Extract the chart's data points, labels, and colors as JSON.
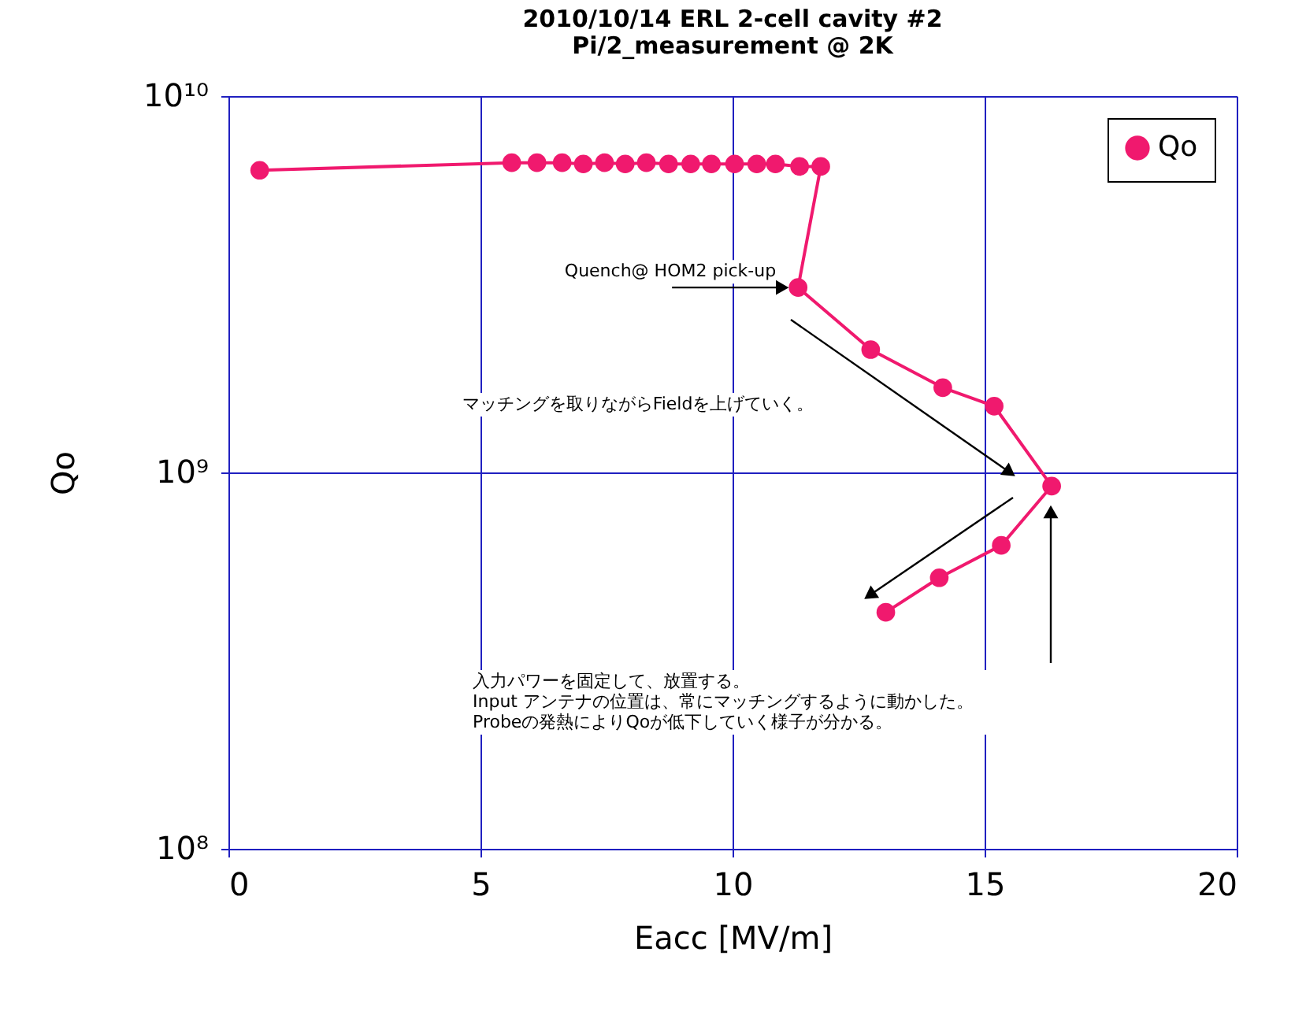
{
  "chart_data": {
    "type": "line",
    "title": "2010/10/14 ERL 2-cell cavity #2\nPi/2_measurement @ 2K",
    "xlabel": "Eacc [MV/m]",
    "ylabel": "Qo",
    "x": [
      0.62,
      5.62,
      6.12,
      6.62,
      7.04,
      7.46,
      7.87,
      8.29,
      8.73,
      9.17,
      9.58,
      10.04,
      10.48,
      10.85,
      11.33,
      11.75,
      11.3,
      12.74,
      14.17,
      15.19,
      16.33,
      15.33,
      14.1,
      13.04
    ],
    "series": [
      {
        "name": "Qo",
        "color": "#f0196e",
        "values": [
          6350000000.0,
          6650000000.0,
          6650000000.0,
          6650000000.0,
          6600000000.0,
          6650000000.0,
          6600000000.0,
          6650000000.0,
          6600000000.0,
          6600000000.0,
          6600000000.0,
          6600000000.0,
          6600000000.0,
          6600000000.0,
          6500000000.0,
          6500000000.0,
          3100000000.0,
          2120000000.0,
          1680000000.0,
          1500000000.0,
          920000000.0,
          640000000.0,
          525000000.0,
          425000000.0
        ]
      }
    ],
    "xlim": [
      0,
      20
    ],
    "xticks": [
      0,
      5,
      10,
      15,
      20
    ],
    "ylim": [
      100000000.0,
      10000000000.0
    ],
    "yticks": [
      {
        "value": 100000000.0,
        "label": "10⁸"
      },
      {
        "value": 1000000000.0,
        "label": "10⁹"
      },
      {
        "value": 10000000000.0,
        "label": "10¹⁰"
      }
    ],
    "log": "y",
    "grid": true,
    "legend": "top right",
    "marker": "circle",
    "line_style": "solid",
    "annotations": [
      {
        "text": "Quench@ HOM2 pick-up",
        "x": 11.3,
        "y": 3100000000.0
      },
      "マッチングを取りながらFieldを上げていく。",
      "入力パワーを固定して、放置する。\nInput アンテナの位置は、常にマッチングするように動かした。\nProbeの発熱によりQoが低下していく様子が分かる。"
    ]
  }
}
